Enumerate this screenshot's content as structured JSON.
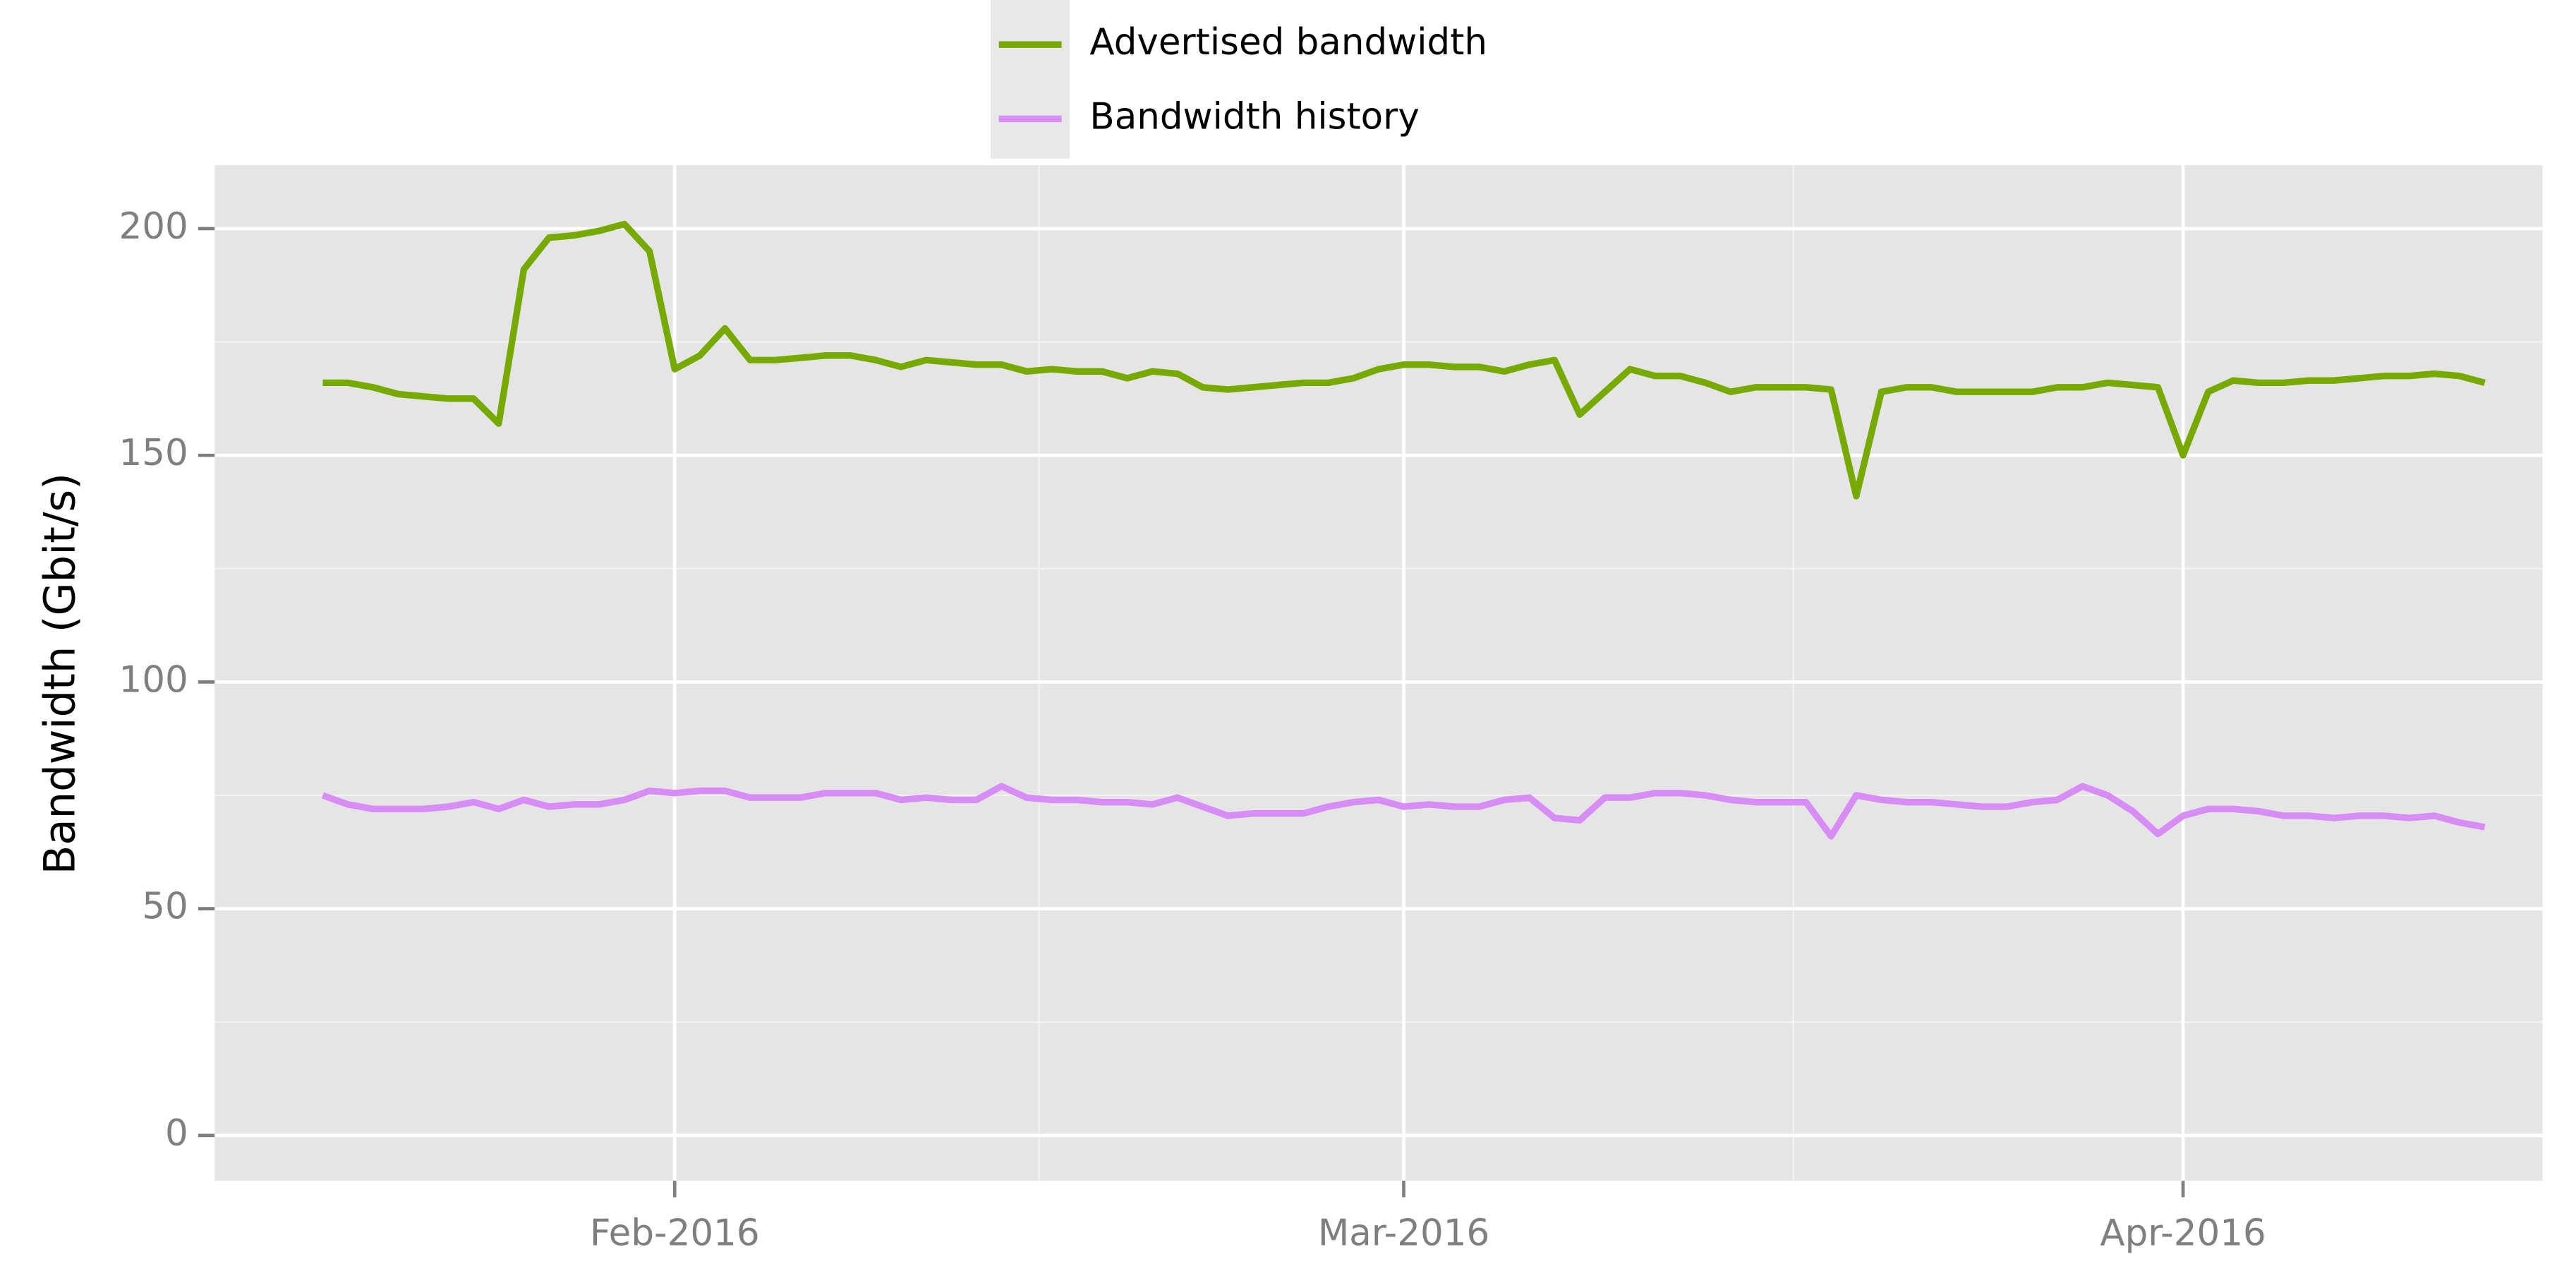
{
  "chart_data": {
    "type": "line",
    "y_label": "Bandwidth (Gbit/s)",
    "legend": "top",
    "grid": true,
    "ylim": [
      -10,
      214
    ],
    "yticks": [
      0,
      50,
      100,
      150,
      200
    ],
    "xlim": [
      -4.3,
      88.3
    ],
    "xticks": [
      {
        "value": 14,
        "label": "Feb-2016"
      },
      {
        "value": 43,
        "label": "Mar-2016"
      },
      {
        "value": 74,
        "label": "Apr-2016"
      }
    ],
    "series": [
      {
        "name": "Advertised bandwidth",
        "color": "#77aa00",
        "values": [
          166,
          166,
          165,
          163.5,
          163,
          162.5,
          162.5,
          157,
          191,
          198,
          198.5,
          199.5,
          201,
          195,
          169,
          172,
          178,
          171,
          171,
          171.5,
          172,
          172,
          171,
          169.5,
          171,
          170.5,
          170,
          170,
          168.5,
          169,
          168.5,
          168.5,
          167,
          168.5,
          168,
          165,
          164.5,
          165,
          165.5,
          166,
          166,
          167,
          169,
          170,
          170,
          169.5,
          169.5,
          168.5,
          170,
          171,
          159,
          164,
          169,
          167.5,
          167.5,
          166,
          164,
          165,
          165,
          165,
          164.5,
          141,
          164,
          165,
          165,
          164,
          164,
          164,
          164,
          165,
          165,
          166,
          165.5,
          165,
          150,
          164,
          166.5,
          166,
          166,
          166.5,
          166.5,
          167,
          167.5,
          167.5,
          168,
          167.5,
          166
        ]
      },
      {
        "name": "Bandwidth history",
        "color": "#d88cf5",
        "values": [
          75,
          73,
          72,
          72,
          72,
          72.5,
          73.5,
          72,
          74,
          72.5,
          73,
          73,
          74,
          76,
          75.5,
          76,
          76,
          74.5,
          74.5,
          74.5,
          75.5,
          75.5,
          75.5,
          74,
          74.5,
          74,
          74,
          77,
          74.5,
          74,
          74,
          73.5,
          73.5,
          73,
          74.5,
          72.5,
          70.5,
          71,
          71,
          71,
          72.5,
          73.5,
          74,
          72.5,
          73,
          72.5,
          72.5,
          74,
          74.5,
          70,
          69.5,
          74.5,
          74.5,
          75.5,
          75.5,
          75,
          74,
          73.5,
          73.5,
          73.5,
          66,
          75,
          74,
          73.5,
          73.5,
          73,
          72.5,
          72.5,
          73.5,
          74,
          77,
          75,
          71.5,
          66.5,
          70.5,
          72,
          72,
          71.5,
          70.5,
          70.5,
          70,
          70.5,
          70.5,
          70,
          70.5,
          69,
          68
        ]
      }
    ]
  }
}
